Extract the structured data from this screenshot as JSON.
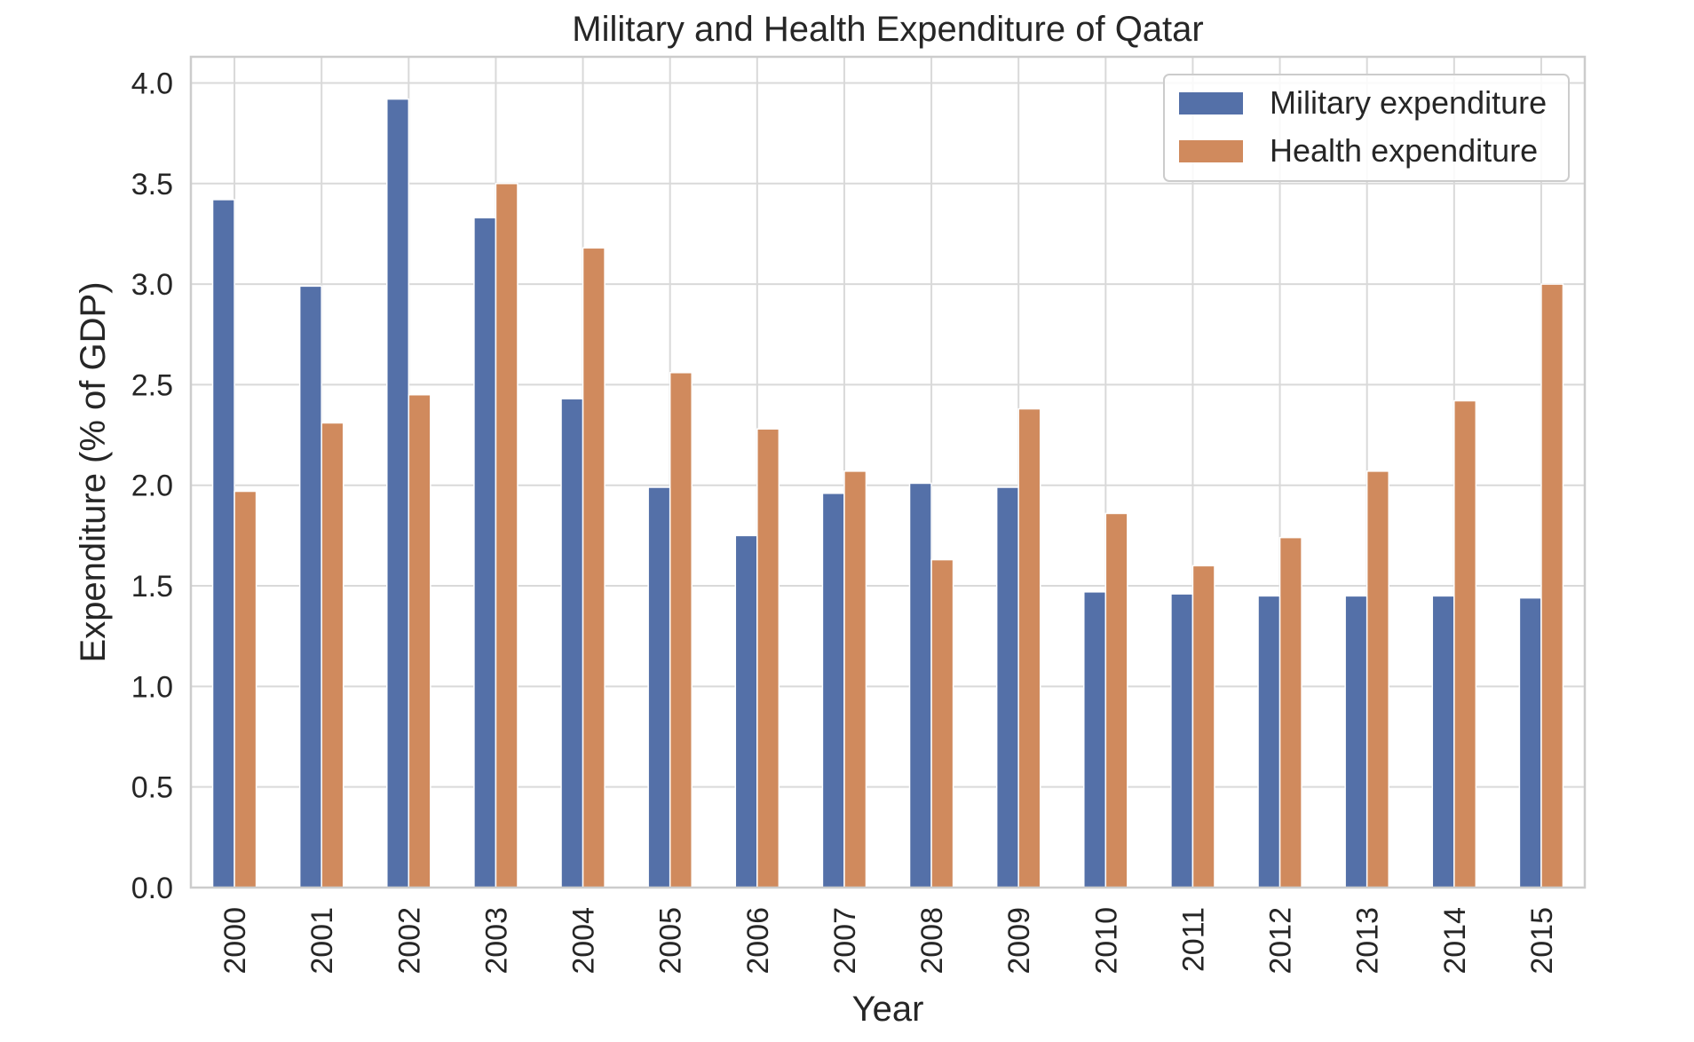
{
  "chart_data": {
    "type": "bar",
    "title": "Military and Health Expenditure of Qatar",
    "xlabel": "Year",
    "ylabel": "Expenditure (% of GDP)",
    "categories": [
      "2000",
      "2001",
      "2002",
      "2003",
      "2004",
      "2005",
      "2006",
      "2007",
      "2008",
      "2009",
      "2010",
      "2011",
      "2012",
      "2013",
      "2014",
      "2015"
    ],
    "series": [
      {
        "name": "Military expenditure",
        "color": "#5470a8",
        "values": [
          3.42,
          2.99,
          3.92,
          3.33,
          2.43,
          1.99,
          1.75,
          1.96,
          2.01,
          1.99,
          1.47,
          1.46,
          1.45,
          1.45,
          1.45,
          1.44
        ]
      },
      {
        "name": "Health expenditure",
        "color": "#d08a5d",
        "values": [
          1.97,
          2.31,
          2.45,
          3.5,
          3.18,
          2.56,
          2.28,
          2.07,
          1.63,
          2.38,
          1.86,
          1.6,
          1.74,
          2.07,
          2.42,
          3.0
        ]
      }
    ],
    "yticks": [
      "0.0",
      "0.5",
      "1.0",
      "1.5",
      "2.0",
      "2.5",
      "3.0",
      "3.5",
      "4.0"
    ],
    "ylim": [
      0,
      4.13
    ],
    "grid": true,
    "legend_position": "top-right"
  }
}
